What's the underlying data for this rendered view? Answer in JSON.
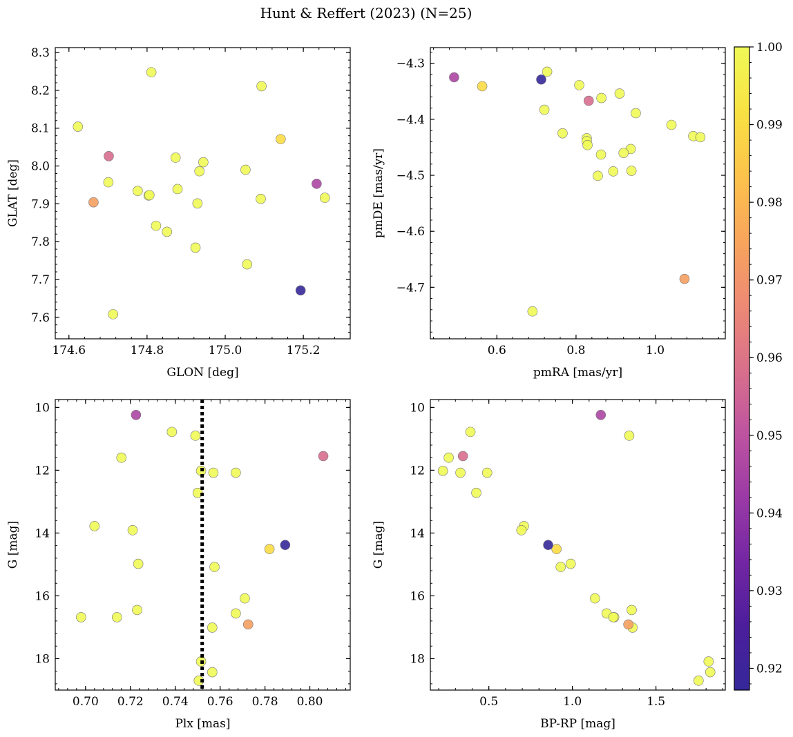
{
  "figure": {
    "title": "Hunt & Reffert (2023) (N=25)"
  },
  "colorbar": {
    "min": 0.9172,
    "max": 1.0,
    "ticks": [
      0.92,
      0.93,
      0.94,
      0.95,
      0.96,
      0.97,
      0.98,
      0.99,
      1.0
    ],
    "tick_labels": [
      "0.92",
      "0.93",
      "0.94",
      "0.95",
      "0.96",
      "0.97",
      "0.98",
      "0.99",
      "1.00"
    ],
    "colormap": [
      "#35289a",
      "#4c1e9c",
      "#7326a3",
      "#9b3aa6",
      "#be54a0",
      "#d9708b",
      "#ed8a74",
      "#f8a55c",
      "#fdc34b",
      "#f8e243",
      "#f0f957"
    ]
  },
  "chart_data": [
    {
      "type": "scatter",
      "panel": "top-left",
      "xlabel": "GLON [deg]",
      "ylabel": "GLAT [deg]",
      "xlim": [
        174.565,
        175.32
      ],
      "ylim": [
        7.543,
        8.313
      ],
      "y_inverted": false,
      "xticks": [
        174.6,
        174.8,
        175.0,
        175.2
      ],
      "xtick_labels": [
        "174.6",
        "174.8",
        "175.0",
        "175.2"
      ],
      "yticks": [
        7.6,
        7.7,
        7.8,
        7.9,
        8.0,
        8.1,
        8.2,
        8.3
      ],
      "ytick_labels": [
        "7.6",
        "7.7",
        "7.8",
        "7.9",
        "8.0",
        "8.1",
        "8.2",
        "8.3"
      ],
      "points": [
        {
          "x": 174.623,
          "y": 8.104,
          "c": 1.0
        },
        {
          "x": 174.811,
          "y": 8.248,
          "c": 1.0
        },
        {
          "x": 175.093,
          "y": 8.211,
          "c": 1.0
        },
        {
          "x": 175.142,
          "y": 8.071,
          "c": 0.99
        },
        {
          "x": 174.702,
          "y": 8.026,
          "c": 0.958
        },
        {
          "x": 174.873,
          "y": 8.022,
          "c": 1.0
        },
        {
          "x": 174.944,
          "y": 8.01,
          "c": 1.0
        },
        {
          "x": 174.934,
          "y": 7.986,
          "c": 1.0
        },
        {
          "x": 175.052,
          "y": 7.99,
          "c": 1.0
        },
        {
          "x": 174.701,
          "y": 7.957,
          "c": 1.0
        },
        {
          "x": 175.234,
          "y": 7.953,
          "c": 0.946
        },
        {
          "x": 174.878,
          "y": 7.939,
          "c": 1.0
        },
        {
          "x": 174.776,
          "y": 7.934,
          "c": 1.0
        },
        {
          "x": 174.804,
          "y": 7.922,
          "c": 1.0
        },
        {
          "x": 175.091,
          "y": 7.913,
          "c": 1.0
        },
        {
          "x": 175.255,
          "y": 7.916,
          "c": 1.0
        },
        {
          "x": 174.663,
          "y": 7.904,
          "c": 0.973
        },
        {
          "x": 174.929,
          "y": 7.901,
          "c": 1.0
        },
        {
          "x": 174.823,
          "y": 7.842,
          "c": 1.0
        },
        {
          "x": 174.851,
          "y": 7.826,
          "c": 1.0
        },
        {
          "x": 174.924,
          "y": 7.784,
          "c": 1.0
        },
        {
          "x": 175.056,
          "y": 7.74,
          "c": 1.0
        },
        {
          "x": 175.193,
          "y": 7.671,
          "c": 0.9172
        },
        {
          "x": 174.713,
          "y": 7.608,
          "c": 1.0
        },
        {
          "x": 174.806,
          "y": 7.923,
          "c": 1.0
        }
      ]
    },
    {
      "type": "scatter",
      "panel": "top-right",
      "xlabel": "pmRA [mas/yr]",
      "ylabel": "pmDE [mas/yr]",
      "xlim": [
        0.432,
        1.177
      ],
      "ylim": [
        -4.792,
        -4.272
      ],
      "y_inverted": false,
      "xticks": [
        0.6,
        0.8,
        1.0
      ],
      "xtick_labels": [
        "0.6",
        "0.8",
        "1.0"
      ],
      "yticks": [
        -4.7,
        -4.6,
        -4.5,
        -4.4,
        -4.3
      ],
      "ytick_labels": [
        "−4.7",
        "−4.6",
        "−4.5",
        "−4.4",
        "−4.3"
      ],
      "points": [
        {
          "x": 0.492,
          "y": -4.325,
          "c": 0.946
        },
        {
          "x": 0.563,
          "y": -4.341,
          "c": 0.99
        },
        {
          "x": 0.712,
          "y": -4.329,
          "c": 0.9172
        },
        {
          "x": 0.727,
          "y": -4.315,
          "c": 1.0
        },
        {
          "x": 0.808,
          "y": -4.339,
          "c": 1.0
        },
        {
          "x": 0.91,
          "y": -4.354,
          "c": 1.0
        },
        {
          "x": 0.832,
          "y": -4.367,
          "c": 0.958
        },
        {
          "x": 0.864,
          "y": -4.362,
          "c": 1.0
        },
        {
          "x": 0.72,
          "y": -4.383,
          "c": 1.0
        },
        {
          "x": 0.951,
          "y": -4.389,
          "c": 1.0
        },
        {
          "x": 1.041,
          "y": -4.41,
          "c": 1.0
        },
        {
          "x": 0.766,
          "y": -4.425,
          "c": 1.0
        },
        {
          "x": 1.096,
          "y": -4.43,
          "c": 1.0
        },
        {
          "x": 1.114,
          "y": -4.432,
          "c": 1.0
        },
        {
          "x": 0.827,
          "y": -4.434,
          "c": 1.0
        },
        {
          "x": 0.827,
          "y": -4.439,
          "c": 1.0
        },
        {
          "x": 0.829,
          "y": -4.446,
          "c": 1.0
        },
        {
          "x": 0.938,
          "y": -4.453,
          "c": 1.0
        },
        {
          "x": 0.92,
          "y": -4.46,
          "c": 1.0
        },
        {
          "x": 0.863,
          "y": -4.463,
          "c": 1.0
        },
        {
          "x": 0.894,
          "y": -4.493,
          "c": 1.0
        },
        {
          "x": 0.94,
          "y": -4.492,
          "c": 1.0
        },
        {
          "x": 0.855,
          "y": -4.501,
          "c": 1.0
        },
        {
          "x": 1.074,
          "y": -4.685,
          "c": 0.973
        },
        {
          "x": 0.69,
          "y": -4.743,
          "c": 1.0
        }
      ]
    },
    {
      "type": "scatter",
      "panel": "bottom-left",
      "xlabel": "Plx [mas]",
      "ylabel": "G [mag]",
      "xlim": [
        0.6865,
        0.818
      ],
      "ylim": [
        19.0,
        9.75
      ],
      "y_inverted": true,
      "xticks": [
        0.7,
        0.72,
        0.74,
        0.76,
        0.78,
        0.8
      ],
      "xtick_labels": [
        "0.70",
        "0.72",
        "0.74",
        "0.76",
        "0.78",
        "0.80"
      ],
      "yticks": [
        10,
        12,
        14,
        16,
        18
      ],
      "ytick_labels": [
        "10",
        "12",
        "14",
        "16",
        "18"
      ],
      "vline": 0.752,
      "points": [
        {
          "x": 0.7225,
          "y": 10.24,
          "c": 0.946
        },
        {
          "x": 0.7385,
          "y": 10.78,
          "c": 1.0
        },
        {
          "x": 0.749,
          "y": 10.9,
          "c": 1.0
        },
        {
          "x": 0.806,
          "y": 11.55,
          "c": 0.958
        },
        {
          "x": 0.716,
          "y": 11.6,
          "c": 1.0
        },
        {
          "x": 0.7515,
          "y": 12.02,
          "c": 1.0
        },
        {
          "x": 0.757,
          "y": 12.08,
          "c": 1.0
        },
        {
          "x": 0.767,
          "y": 12.08,
          "c": 1.0
        },
        {
          "x": 0.75,
          "y": 12.72,
          "c": 1.0
        },
        {
          "x": 0.704,
          "y": 13.78,
          "c": 1.0
        },
        {
          "x": 0.721,
          "y": 13.91,
          "c": 1.0
        },
        {
          "x": 0.789,
          "y": 14.38,
          "c": 0.9172
        },
        {
          "x": 0.782,
          "y": 14.51,
          "c": 0.99
        },
        {
          "x": 0.7235,
          "y": 14.98,
          "c": 1.0
        },
        {
          "x": 0.7575,
          "y": 15.08,
          "c": 1.0
        },
        {
          "x": 0.771,
          "y": 16.08,
          "c": 1.0
        },
        {
          "x": 0.723,
          "y": 16.45,
          "c": 1.0
        },
        {
          "x": 0.767,
          "y": 16.56,
          "c": 1.0
        },
        {
          "x": 0.698,
          "y": 16.68,
          "c": 1.0
        },
        {
          "x": 0.714,
          "y": 16.68,
          "c": 1.0
        },
        {
          "x": 0.7725,
          "y": 16.91,
          "c": 0.973
        },
        {
          "x": 0.7565,
          "y": 17.01,
          "c": 1.0
        },
        {
          "x": 0.7515,
          "y": 18.09,
          "c": 1.0
        },
        {
          "x": 0.7565,
          "y": 18.43,
          "c": 1.0
        },
        {
          "x": 0.7505,
          "y": 18.7,
          "c": 1.0
        }
      ]
    },
    {
      "type": "scatter",
      "panel": "bottom-right",
      "xlabel": "BP-RP [mag]",
      "ylabel": "G [mag]",
      "xlim": [
        0.15,
        1.915
      ],
      "ylim": [
        19.0,
        9.75
      ],
      "y_inverted": true,
      "xticks": [
        0.5,
        1.0,
        1.5
      ],
      "xtick_labels": [
        "0.5",
        "1.0",
        "1.5"
      ],
      "yticks": [
        10,
        12,
        14,
        16,
        18
      ],
      "ytick_labels": [
        "10",
        "12",
        "14",
        "16",
        "18"
      ],
      "points": [
        {
          "x": 1.17,
          "y": 10.24,
          "c": 0.946
        },
        {
          "x": 0.39,
          "y": 10.78,
          "c": 1.0
        },
        {
          "x": 1.34,
          "y": 10.9,
          "c": 1.0
        },
        {
          "x": 0.345,
          "y": 11.55,
          "c": 0.958
        },
        {
          "x": 0.26,
          "y": 11.6,
          "c": 1.0
        },
        {
          "x": 0.225,
          "y": 12.02,
          "c": 1.0
        },
        {
          "x": 0.33,
          "y": 12.08,
          "c": 1.0
        },
        {
          "x": 0.49,
          "y": 12.08,
          "c": 1.0
        },
        {
          "x": 0.425,
          "y": 12.72,
          "c": 1.0
        },
        {
          "x": 0.71,
          "y": 13.78,
          "c": 1.0
        },
        {
          "x": 0.695,
          "y": 13.91,
          "c": 1.0
        },
        {
          "x": 0.855,
          "y": 14.38,
          "c": 0.9172
        },
        {
          "x": 0.905,
          "y": 14.51,
          "c": 0.99
        },
        {
          "x": 0.99,
          "y": 14.98,
          "c": 1.0
        },
        {
          "x": 0.93,
          "y": 15.08,
          "c": 1.0
        },
        {
          "x": 1.135,
          "y": 16.08,
          "c": 1.0
        },
        {
          "x": 1.355,
          "y": 16.45,
          "c": 1.0
        },
        {
          "x": 1.205,
          "y": 16.56,
          "c": 1.0
        },
        {
          "x": 1.25,
          "y": 16.68,
          "c": 1.0
        },
        {
          "x": 1.245,
          "y": 16.68,
          "c": 1.0
        },
        {
          "x": 1.335,
          "y": 16.91,
          "c": 0.973
        },
        {
          "x": 1.36,
          "y": 17.01,
          "c": 1.0
        },
        {
          "x": 1.815,
          "y": 18.09,
          "c": 1.0
        },
        {
          "x": 1.825,
          "y": 18.43,
          "c": 1.0
        },
        {
          "x": 1.755,
          "y": 18.7,
          "c": 1.0
        }
      ]
    }
  ]
}
